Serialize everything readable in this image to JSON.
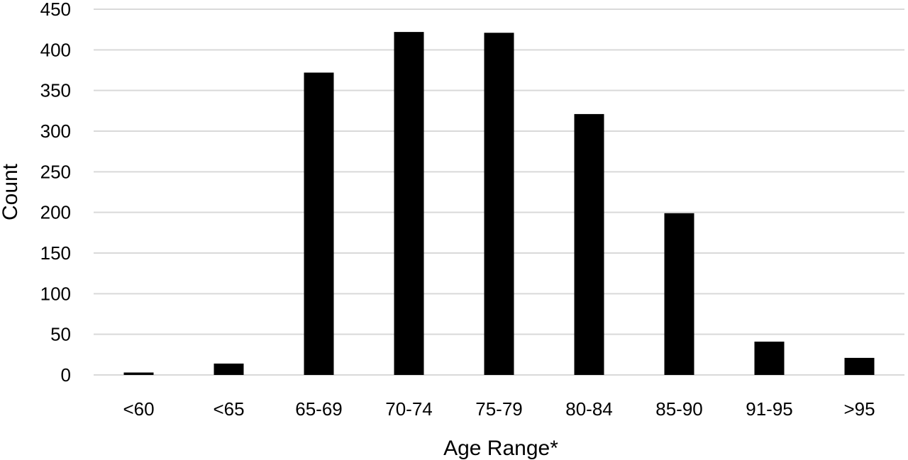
{
  "chart_data": {
    "type": "bar",
    "title": "",
    "xlabel": "Age Range*",
    "ylabel": "Count",
    "categories": [
      "<60",
      "<65",
      "65-69",
      "70-74",
      "75-79",
      "80-84",
      "85-90",
      "91-95",
      ">95"
    ],
    "values": [
      3,
      14,
      372,
      422,
      421,
      321,
      199,
      41,
      21
    ],
    "ylim": [
      0,
      450
    ],
    "yticks": [
      0,
      50,
      100,
      150,
      200,
      250,
      300,
      350,
      400,
      450
    ],
    "grid": true,
    "legend": "none",
    "bar_color": "#000000",
    "grid_color": "#d9d9d9"
  }
}
